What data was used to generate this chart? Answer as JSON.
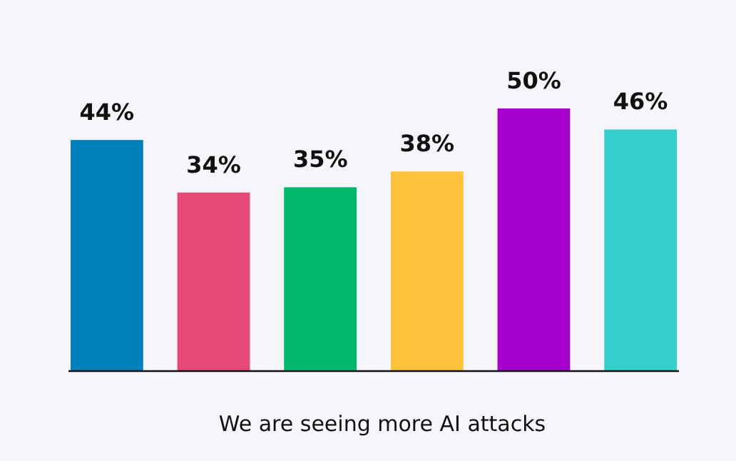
{
  "chart_data": {
    "type": "bar",
    "categories": [
      null,
      null,
      null,
      null,
      null,
      null
    ],
    "values": [
      44,
      34,
      35,
      38,
      50,
      46
    ],
    "colors": [
      "#0080bb",
      "#e84a78",
      "#00b86b",
      "#ffc23a",
      "#a600cc",
      "#34d1cc"
    ],
    "value_labels": [
      "44%",
      "34%",
      "35%",
      "38%",
      "50%",
      "46%"
    ],
    "xlabel": "We are seeing more AI attacks"
  }
}
